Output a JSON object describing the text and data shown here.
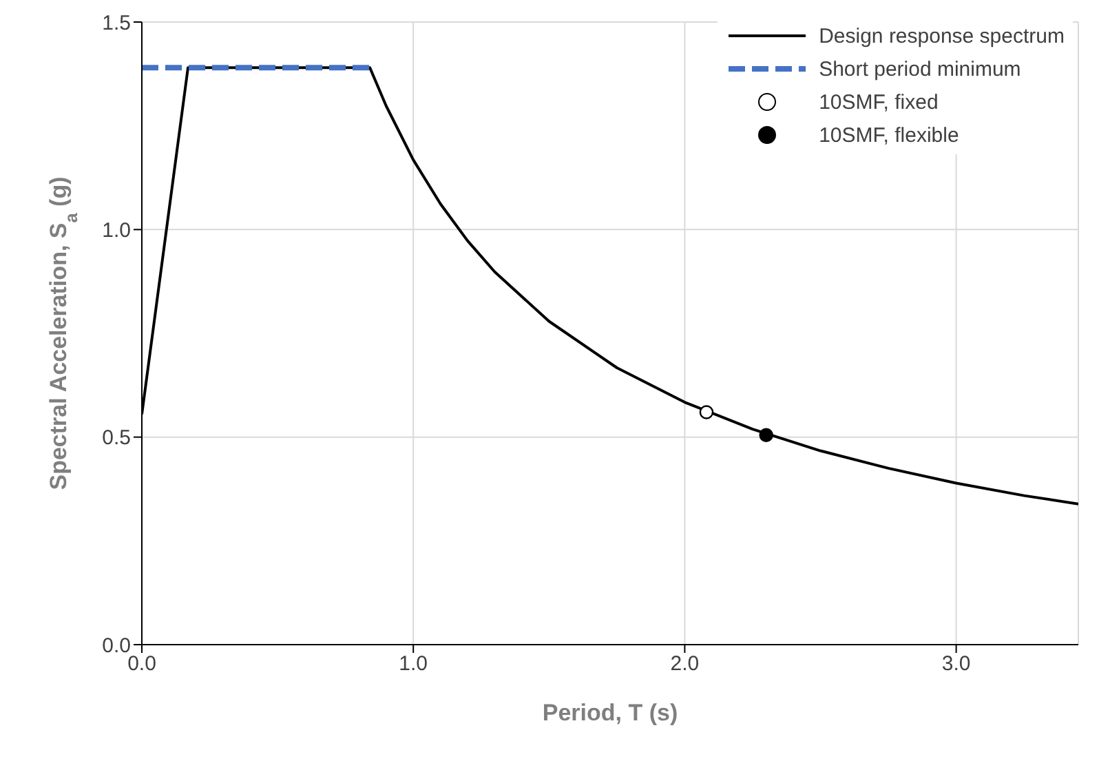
{
  "chart_data": {
    "type": "line",
    "xlabel": "Period, T (s)",
    "ylabel": "Spectral Acceleration, S$_{a}$ (g)",
    "xlim": [
      0,
      3.45
    ],
    "ylim": [
      0,
      1.5
    ],
    "xticks": [
      {
        "value": 0,
        "label": "0.0"
      },
      {
        "value": 1,
        "label": "1.0"
      },
      {
        "value": 2,
        "label": "2.0"
      },
      {
        "value": 3,
        "label": "3.0"
      }
    ],
    "yticks": [
      {
        "value": 0,
        "label": "0.0"
      },
      {
        "value": 0.5,
        "label": "0.5"
      },
      {
        "value": 1,
        "label": "1.0"
      },
      {
        "value": 1.5,
        "label": "1.5"
      }
    ],
    "grid": true,
    "legend": "top right",
    "series": [
      {
        "name": "Design response spectrum",
        "type": "line",
        "color": "#000000",
        "line_style": "solid",
        "marker": "none",
        "x": [
          0,
          0.17,
          0.84,
          0.9,
          1.0,
          1.1,
          1.2,
          1.3,
          1.5,
          1.75,
          2.0,
          2.25,
          2.5,
          2.75,
          3.0,
          3.25,
          3.45
        ],
        "values": [
          0.555,
          1.39,
          1.39,
          1.298,
          1.168,
          1.062,
          0.973,
          0.898,
          0.779,
          0.667,
          0.584,
          0.519,
          0.467,
          0.425,
          0.389,
          0.359,
          0.339
        ]
      },
      {
        "name": "Short period minimum",
        "type": "line",
        "color": "#4472c4",
        "line_style": "dashed",
        "marker": "none",
        "x": [
          0,
          0.84
        ],
        "values": [
          1.39,
          1.39
        ]
      },
      {
        "name": "10SMF, fixed",
        "type": "scatter",
        "color": "#ffffff",
        "marker": "circle",
        "x": [
          2.08
        ],
        "values": [
          0.56
        ]
      },
      {
        "name": "10SMF, flexible",
        "type": "scatter",
        "color": "#000000",
        "marker": "circle",
        "x": [
          2.3
        ],
        "values": [
          0.505
        ]
      }
    ]
  }
}
